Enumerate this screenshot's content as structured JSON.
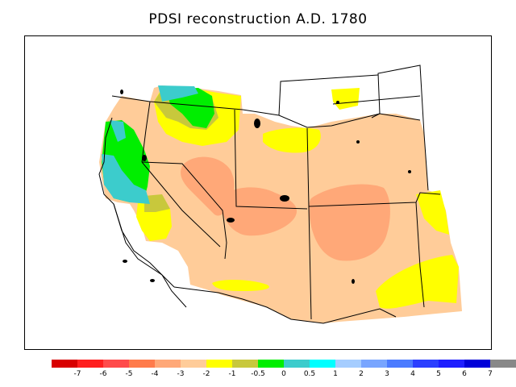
{
  "title": "PDSI reconstruction A.D. 1780",
  "legend": {
    "colors": [
      "#d80000",
      "#ff1f1f",
      "#ff4b4b",
      "#ff7b4b",
      "#ffa878",
      "#ffcc99",
      "#ffff00",
      "#c8c83c",
      "#00ee00",
      "#3ccccc",
      "#00ffff",
      "#a5cdff",
      "#78a5ff",
      "#4b7bff",
      "#2b3fff",
      "#1e1eff",
      "#0000d8",
      "#888888"
    ],
    "labels": [
      "-7",
      "-6",
      "-5",
      "-4",
      "-3",
      "-2",
      "-1",
      "-0.5",
      "0",
      "0.5",
      "1",
      "2",
      "3",
      "4",
      "5",
      "6",
      "7"
    ]
  },
  "map": {
    "regions": [
      {
        "name": "base-field",
        "color": "#ffcc99"
      },
      {
        "name": "dry-core-west",
        "color": "#ffa878"
      },
      {
        "name": "dry-core-colorado",
        "color": "#ffa878"
      },
      {
        "name": "dry-core-nm",
        "color": "#ffa878"
      },
      {
        "name": "moist-wyoming",
        "color": "#ffff00"
      },
      {
        "name": "moist-northwest",
        "color": "#ffff00"
      },
      {
        "name": "moist-california",
        "color": "#ffff00"
      },
      {
        "name": "moist-southwest",
        "color": "#ffff00"
      },
      {
        "name": "moist-east",
        "color": "#ffff00"
      },
      {
        "name": "wet-northwest",
        "color": "#c8c83c"
      },
      {
        "name": "wet-coast",
        "color": "#00ee00"
      },
      {
        "name": "very-wet-coast",
        "color": "#3ccccc"
      }
    ]
  }
}
